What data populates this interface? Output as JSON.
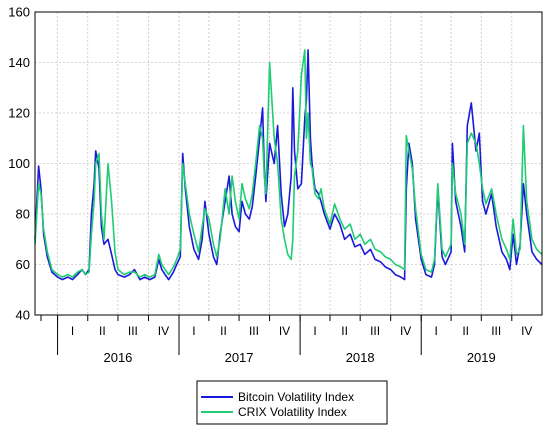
{
  "chart_data": {
    "type": "line",
    "title": "",
    "xlabel": "",
    "ylabel": "",
    "ylim": [
      40,
      160
    ],
    "yticks": [
      40,
      60,
      80,
      100,
      120,
      140,
      160
    ],
    "xlim": [
      "2015-10-25",
      "2019-12-31"
    ],
    "grid": true,
    "legend_position": "bottom-center",
    "quarter_labels": [
      {
        "label": "I",
        "date": "2016-02-15"
      },
      {
        "label": "II",
        "date": "2016-05-15"
      },
      {
        "label": "III",
        "date": "2016-08-15"
      },
      {
        "label": "IV",
        "date": "2016-11-15"
      },
      {
        "label": "I",
        "date": "2017-02-15"
      },
      {
        "label": "II",
        "date": "2017-05-15"
      },
      {
        "label": "III",
        "date": "2017-08-15"
      },
      {
        "label": "IV",
        "date": "2017-11-15"
      },
      {
        "label": "I",
        "date": "2018-02-15"
      },
      {
        "label": "II",
        "date": "2018-05-15"
      },
      {
        "label": "III",
        "date": "2018-08-15"
      },
      {
        "label": "IV",
        "date": "2018-11-15"
      },
      {
        "label": "I",
        "date": "2019-02-15"
      },
      {
        "label": "II",
        "date": "2019-05-15"
      },
      {
        "label": "III",
        "date": "2019-08-15"
      },
      {
        "label": "IV",
        "date": "2019-11-15"
      }
    ],
    "year_labels": [
      {
        "label": "2016",
        "date": "2016-07-01"
      },
      {
        "label": "2017",
        "date": "2017-07-01"
      },
      {
        "label": "2018",
        "date": "2018-07-01"
      },
      {
        "label": "2019",
        "date": "2019-07-01"
      }
    ],
    "series": [
      {
        "name": "Bitcoin Volatility Index",
        "color": "#1a1adb",
        "x": [
          "2015-10-25",
          "2015-11-05",
          "2015-11-12",
          "2015-11-20",
          "2015-12-01",
          "2015-12-15",
          "2016-01-01",
          "2016-01-15",
          "2016-02-01",
          "2016-02-15",
          "2016-03-01",
          "2016-03-15",
          "2016-03-25",
          "2016-04-05",
          "2016-04-12",
          "2016-04-20",
          "2016-04-25",
          "2016-05-05",
          "2016-05-12",
          "2016-05-20",
          "2016-06-01",
          "2016-06-12",
          "2016-06-22",
          "2016-07-01",
          "2016-07-20",
          "2016-08-05",
          "2016-08-20",
          "2016-09-05",
          "2016-09-20",
          "2016-10-05",
          "2016-10-20",
          "2016-11-01",
          "2016-11-10",
          "2016-11-20",
          "2016-12-01",
          "2016-12-15",
          "2016-12-25",
          "2017-01-05",
          "2017-01-12",
          "2017-01-20",
          "2017-02-01",
          "2017-02-15",
          "2017-03-01",
          "2017-03-12",
          "2017-03-20",
          "2017-04-01",
          "2017-04-15",
          "2017-04-25",
          "2017-05-05",
          "2017-05-20",
          "2017-06-01",
          "2017-06-10",
          "2017-06-20",
          "2017-07-01",
          "2017-07-10",
          "2017-07-20",
          "2017-08-01",
          "2017-08-10",
          "2017-08-20",
          "2017-09-01",
          "2017-09-10",
          "2017-09-15",
          "2017-09-20",
          "2017-10-01",
          "2017-10-15",
          "2017-10-25",
          "2017-11-05",
          "2017-11-15",
          "2017-11-25",
          "2017-12-05",
          "2017-12-10",
          "2017-12-15",
          "2017-12-25",
          "2018-01-05",
          "2018-01-15",
          "2018-01-20",
          "2018-01-25",
          "2018-02-01",
          "2018-02-06",
          "2018-02-10",
          "2018-02-15",
          "2018-02-25",
          "2018-03-05",
          "2018-03-15",
          "2018-04-01",
          "2018-04-15",
          "2018-05-01",
          "2018-05-15",
          "2018-06-01",
          "2018-06-15",
          "2018-07-01",
          "2018-07-15",
          "2018-08-01",
          "2018-08-15",
          "2018-09-01",
          "2018-09-15",
          "2018-10-01",
          "2018-10-15",
          "2018-11-01",
          "2018-11-12",
          "2018-11-17",
          "2018-11-25",
          "2018-12-05",
          "2018-12-15",
          "2019-01-01",
          "2019-01-15",
          "2019-02-01",
          "2019-02-10",
          "2019-02-20",
          "2019-03-05",
          "2019-03-15",
          "2019-04-01",
          "2019-04-05",
          "2019-04-15",
          "2019-05-01",
          "2019-05-12",
          "2019-05-20",
          "2019-06-01",
          "2019-06-15",
          "2019-06-25",
          "2019-07-05",
          "2019-07-15",
          "2019-08-01",
          "2019-08-15",
          "2019-09-01",
          "2019-09-15",
          "2019-09-25",
          "2019-10-05",
          "2019-10-15",
          "2019-10-26",
          "2019-11-05",
          "2019-11-15",
          "2019-12-01",
          "2019-12-15",
          "2019-12-31"
        ],
        "values": [
          70,
          99,
          90,
          72,
          63,
          57,
          55,
          54,
          55,
          54,
          56,
          58,
          56,
          58,
          80,
          92,
          105,
          98,
          75,
          68,
          70,
          64,
          58,
          56,
          55,
          56,
          58,
          54,
          55,
          54,
          55,
          62,
          58,
          56,
          54,
          57,
          60,
          63,
          104,
          90,
          75,
          66,
          62,
          70,
          85,
          72,
          63,
          60,
          72,
          85,
          95,
          80,
          75,
          73,
          85,
          80,
          78,
          83,
          95,
          110,
          122,
          98,
          85,
          108,
          100,
          115,
          88,
          75,
          80,
          95,
          130,
          105,
          90,
          92,
          118,
          125,
          145,
          110,
          100,
          95,
          90,
          88,
          85,
          80,
          74,
          80,
          76,
          70,
          72,
          67,
          68,
          64,
          66,
          62,
          61,
          59,
          58,
          56,
          55,
          54,
          90,
          108,
          100,
          78,
          62,
          56,
          55,
          60,
          90,
          63,
          60,
          65,
          108,
          85,
          75,
          65,
          115,
          124,
          105,
          112,
          85,
          80,
          88,
          75,
          65,
          62,
          58,
          72,
          60,
          68,
          92,
          80,
          65,
          62,
          60
        ]
      },
      {
        "name": "CRIX Volatility Index",
        "color": "#1fcc74",
        "x": [
          "2015-10-25",
          "2015-11-05",
          "2015-11-12",
          "2015-11-20",
          "2015-12-01",
          "2015-12-15",
          "2016-01-01",
          "2016-01-15",
          "2016-02-01",
          "2016-02-15",
          "2016-03-01",
          "2016-03-15",
          "2016-03-25",
          "2016-04-05",
          "2016-04-12",
          "2016-04-20",
          "2016-04-25",
          "2016-05-05",
          "2016-05-12",
          "2016-05-20",
          "2016-06-01",
          "2016-06-12",
          "2016-06-22",
          "2016-07-01",
          "2016-07-20",
          "2016-08-05",
          "2016-08-20",
          "2016-09-05",
          "2016-09-20",
          "2016-10-05",
          "2016-10-20",
          "2016-11-01",
          "2016-11-10",
          "2016-11-20",
          "2016-12-01",
          "2016-12-15",
          "2016-12-25",
          "2017-01-05",
          "2017-01-12",
          "2017-01-20",
          "2017-02-01",
          "2017-02-15",
          "2017-03-01",
          "2017-03-12",
          "2017-03-20",
          "2017-04-01",
          "2017-04-15",
          "2017-04-25",
          "2017-05-05",
          "2017-05-20",
          "2017-06-01",
          "2017-06-10",
          "2017-06-20",
          "2017-07-01",
          "2017-07-10",
          "2017-07-20",
          "2017-08-01",
          "2017-08-10",
          "2017-08-20",
          "2017-09-01",
          "2017-09-10",
          "2017-09-15",
          "2017-09-20",
          "2017-10-01",
          "2017-10-15",
          "2017-10-25",
          "2017-11-05",
          "2017-11-15",
          "2017-11-25",
          "2017-12-05",
          "2017-12-10",
          "2017-12-15",
          "2017-12-25",
          "2018-01-05",
          "2018-01-15",
          "2018-01-20",
          "2018-01-25",
          "2018-02-01",
          "2018-02-06",
          "2018-02-10",
          "2018-02-15",
          "2018-02-25",
          "2018-03-05",
          "2018-03-15",
          "2018-04-01",
          "2018-04-15",
          "2018-05-01",
          "2018-05-15",
          "2018-06-01",
          "2018-06-15",
          "2018-07-01",
          "2018-07-15",
          "2018-08-01",
          "2018-08-15",
          "2018-09-01",
          "2018-09-15",
          "2018-10-01",
          "2018-10-15",
          "2018-11-01",
          "2018-11-12",
          "2018-11-17",
          "2018-11-25",
          "2018-12-05",
          "2018-12-15",
          "2019-01-01",
          "2019-01-15",
          "2019-02-01",
          "2019-02-10",
          "2019-02-20",
          "2019-03-05",
          "2019-03-15",
          "2019-04-01",
          "2019-04-05",
          "2019-04-15",
          "2019-05-01",
          "2019-05-12",
          "2019-05-20",
          "2019-06-01",
          "2019-06-15",
          "2019-06-25",
          "2019-07-05",
          "2019-07-15",
          "2019-08-01",
          "2019-08-15",
          "2019-09-01",
          "2019-09-15",
          "2019-09-25",
          "2019-10-05",
          "2019-10-15",
          "2019-10-26",
          "2019-11-05",
          "2019-11-15",
          "2019-12-01",
          "2019-12-15",
          "2019-12-31"
        ],
        "values": [
          68,
          92,
          88,
          74,
          65,
          58,
          56,
          55,
          56,
          55,
          57,
          58,
          56,
          57,
          72,
          85,
          100,
          104,
          80,
          70,
          100,
          85,
          65,
          58,
          56,
          57,
          57,
          55,
          56,
          55,
          56,
          64,
          60,
          58,
          56,
          59,
          62,
          66,
          100,
          92,
          80,
          72,
          65,
          75,
          82,
          78,
          68,
          63,
          70,
          90,
          80,
          95,
          85,
          78,
          92,
          86,
          82,
          88,
          100,
          115,
          110,
          95,
          88,
          140,
          110,
          100,
          78,
          70,
          64,
          62,
          70,
          95,
          105,
          135,
          145,
          110,
          120,
          100,
          98,
          93,
          88,
          86,
          90,
          82,
          76,
          84,
          78,
          74,
          76,
          70,
          72,
          68,
          70,
          66,
          65,
          63,
          62,
          60,
          59,
          58,
          111,
          105,
          98,
          82,
          64,
          58,
          57,
          62,
          92,
          66,
          63,
          68,
          100,
          88,
          80,
          68,
          108,
          112,
          108,
          100,
          90,
          84,
          90,
          80,
          70,
          66,
          62,
          78,
          64,
          66,
          115,
          85,
          70,
          66,
          64
        ]
      }
    ]
  }
}
